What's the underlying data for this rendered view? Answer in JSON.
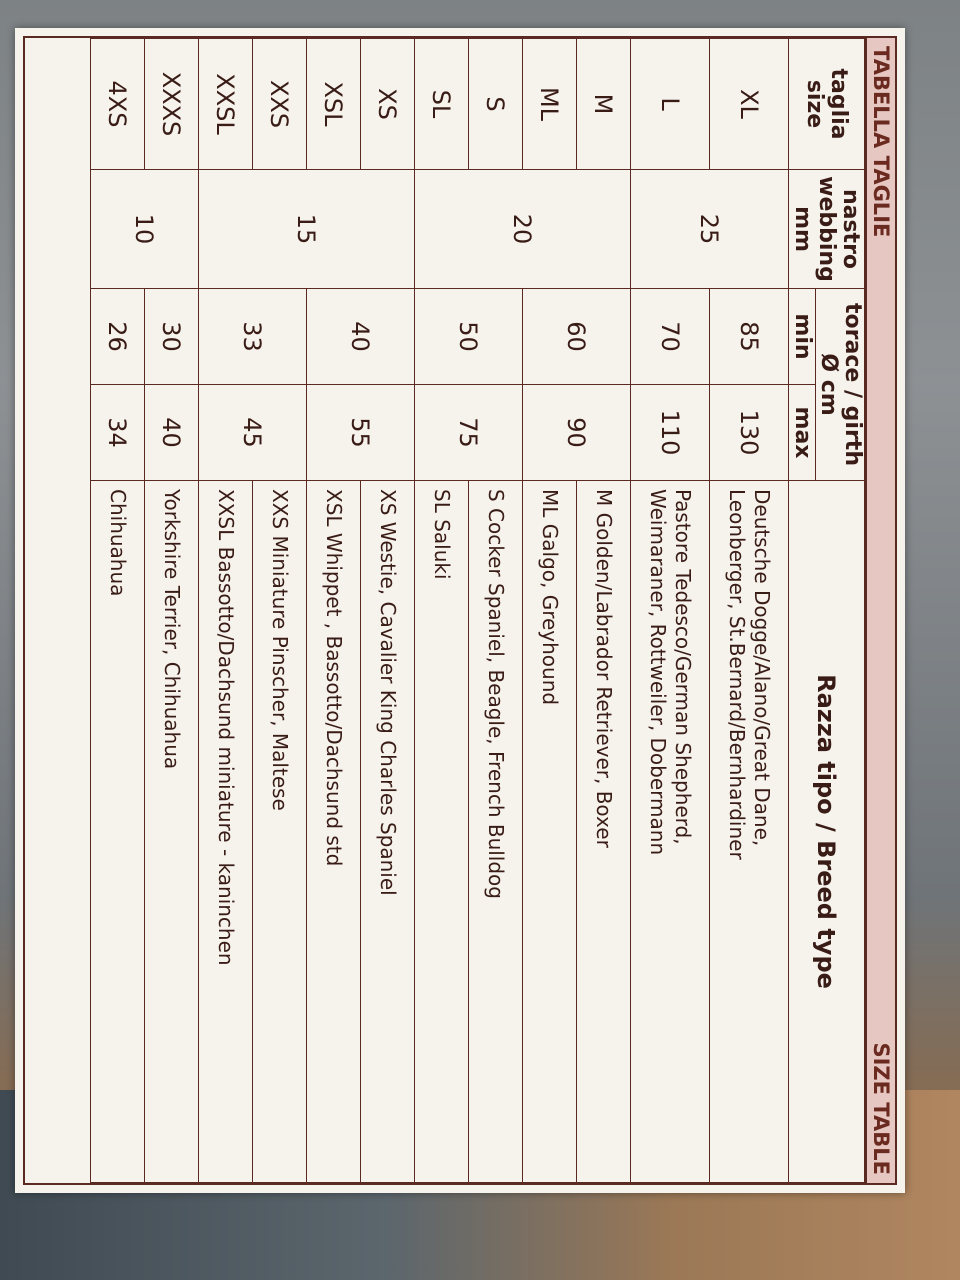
{
  "card": {
    "title_it": "TABELLA TAGLIE",
    "title_en": "SIZE TABLE"
  },
  "header": {
    "size": "taglia",
    "size_en": "size",
    "webbing": "nastro",
    "webbing_en": "webbing",
    "webbing_unit": "mm",
    "girth": "torace / girth",
    "girth_unit": "Ø cm",
    "min": "min",
    "max": "max",
    "breed": "Razza tipo / Breed type"
  },
  "rows": [
    {
      "size": "XL",
      "webbing": "25",
      "min": "85",
      "max": "130",
      "breed": "Deutsche Dogge/Alano/Great Dane,",
      "breed2": "Leonberger, St.Bernard/Bernhardiner"
    },
    {
      "size": "L",
      "min": "70",
      "max": "110",
      "breed": "Pastore Tedesco/German Shepherd,",
      "breed2": "Weimaraner, Rottweiler, Dobermann"
    },
    {
      "size": "M",
      "webbing": "20",
      "min": "60",
      "max": "90",
      "breed": "M  Golden/Labrador Retriever, Boxer"
    },
    {
      "size": "ML",
      "breed": "ML  Galgo, Greyhound"
    },
    {
      "size": "S",
      "min": "50",
      "max": "75",
      "breed": "S   Cocker Spaniel, Beagle, French Bulldog"
    },
    {
      "size": "SL",
      "breed": "SL  Saluki"
    },
    {
      "size": "XS",
      "webbing": "15",
      "min": "40",
      "max": "55",
      "breed": "XS   Westie, Cavalier King Charles Spaniel"
    },
    {
      "size": "XSL",
      "breed": "XSL  Whippet , Bassotto/Dachsund std"
    },
    {
      "size": "XXS",
      "min": "33",
      "max": "45",
      "breed": "XXS   Miniature Pinscher, Maltese"
    },
    {
      "size": "XXSL",
      "breed": "XXSL  Bassotto/Dachsund miniature - kaninchen"
    },
    {
      "size": "XXXS",
      "webbing": "10",
      "min": "30",
      "max": "40",
      "breed": "Yorkshire Terrier, Chihuahua"
    },
    {
      "size": "4XS",
      "min": "26",
      "max": "34",
      "breed": "Chihuahua"
    }
  ]
}
